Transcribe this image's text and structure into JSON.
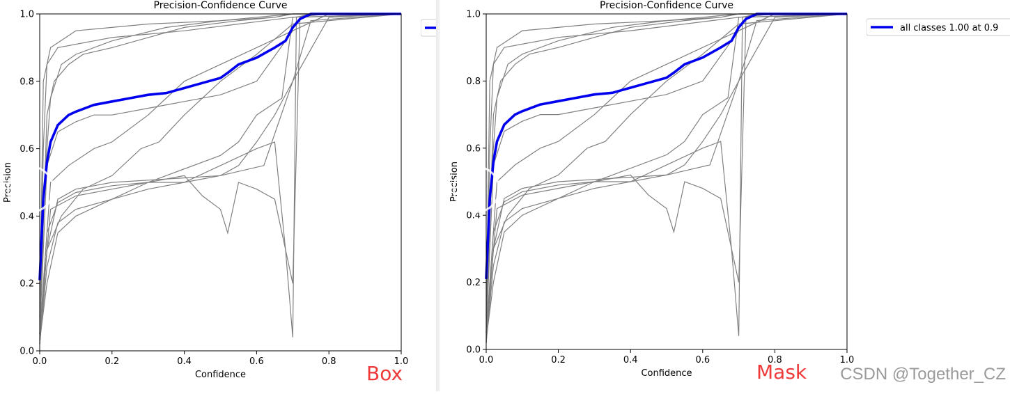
{
  "chart_data": [
    {
      "type": "line",
      "id": "box",
      "title": "Precision-Confidence Curve",
      "xlabel": "Confidence",
      "ylabel": "Precision",
      "xlim": [
        0,
        1.0
      ],
      "ylim": [
        0,
        1.0
      ],
      "xticks": [
        "0.0",
        "0.2",
        "0.4",
        "0.6",
        "0.8",
        "1.0"
      ],
      "yticks": [
        "0.0",
        "0.2",
        "0.4",
        "0.6",
        "0.8",
        "1.0"
      ],
      "grid": false,
      "legend_position": "outside-right",
      "series": [
        {
          "name": "all classes 1.00 at 0.9",
          "color": "#0000ee",
          "x": [
            0.0,
            0.005,
            0.01,
            0.02,
            0.03,
            0.05,
            0.08,
            0.1,
            0.15,
            0.2,
            0.25,
            0.3,
            0.35,
            0.4,
            0.45,
            0.5,
            0.52,
            0.55,
            0.6,
            0.65,
            0.68,
            0.7,
            0.72,
            0.75,
            0.78,
            0.8,
            0.85,
            0.9,
            1.0
          ],
          "y": [
            0.21,
            0.33,
            0.45,
            0.56,
            0.62,
            0.67,
            0.7,
            0.71,
            0.73,
            0.74,
            0.75,
            0.76,
            0.765,
            0.78,
            0.795,
            0.81,
            0.825,
            0.85,
            0.87,
            0.9,
            0.92,
            0.96,
            0.985,
            1.0,
            1.0,
            1.0,
            1.0,
            1.0,
            1.0
          ]
        }
      ],
      "caption": "Box"
    },
    {
      "type": "line",
      "id": "mask",
      "title": "Precision-Confidence Curve",
      "xlabel": "Confidence",
      "ylabel": "Precision",
      "xlim": [
        0,
        1.0
      ],
      "ylim": [
        0,
        1.0
      ],
      "xticks": [
        "0.0",
        "0.2",
        "0.4",
        "0.6",
        "0.8",
        "1.0"
      ],
      "yticks": [
        "0.0",
        "0.2",
        "0.4",
        "0.6",
        "0.8",
        "1.0"
      ],
      "grid": false,
      "legend_position": "outside-right",
      "series": [
        {
          "name": "all classes 1.00 at 0.9",
          "color": "#0000ee",
          "x": [
            0.0,
            0.005,
            0.01,
            0.02,
            0.03,
            0.05,
            0.08,
            0.1,
            0.15,
            0.2,
            0.25,
            0.3,
            0.35,
            0.4,
            0.45,
            0.5,
            0.52,
            0.55,
            0.6,
            0.65,
            0.68,
            0.7,
            0.72,
            0.75,
            0.78,
            0.8,
            0.85,
            0.9,
            1.0
          ],
          "y": [
            0.21,
            0.33,
            0.45,
            0.56,
            0.62,
            0.67,
            0.7,
            0.71,
            0.73,
            0.74,
            0.75,
            0.76,
            0.765,
            0.78,
            0.795,
            0.81,
            0.825,
            0.85,
            0.87,
            0.9,
            0.92,
            0.96,
            0.985,
            1.0,
            1.0,
            1.0,
            1.0,
            1.0,
            1.0
          ]
        }
      ],
      "caption": "Mask"
    }
  ],
  "per_class_curves": {
    "color": "#808080",
    "curves": [
      {
        "x": [
          0.0,
          0.01,
          0.03,
          0.1,
          0.3,
          0.5,
          0.65,
          0.7,
          0.75,
          1.0
        ],
        "y": [
          0.1,
          0.8,
          0.9,
          0.95,
          0.97,
          0.98,
          0.99,
          1.0,
          1.0,
          1.0
        ]
      },
      {
        "x": [
          0.0,
          0.01,
          0.02,
          0.05,
          0.2,
          0.4,
          0.55,
          0.7,
          0.8,
          1.0
        ],
        "y": [
          0.05,
          0.6,
          0.85,
          0.9,
          0.93,
          0.95,
          0.97,
          0.99,
          1.0,
          1.0
        ]
      },
      {
        "x": [
          0.0,
          0.02,
          0.05,
          0.1,
          0.2,
          0.35,
          0.5,
          0.62,
          0.7,
          0.8,
          1.0
        ],
        "y": [
          0.02,
          0.3,
          0.45,
          0.48,
          0.5,
          0.51,
          0.52,
          0.55,
          0.8,
          0.99,
          1.0
        ]
      },
      {
        "x": [
          0.0,
          0.02,
          0.05,
          0.1,
          0.2,
          0.3,
          0.4,
          0.5,
          0.55,
          0.6,
          0.65,
          0.7,
          0.75,
          1.0
        ],
        "y": [
          0.03,
          0.35,
          0.44,
          0.47,
          0.49,
          0.5,
          0.5,
          0.52,
          0.55,
          0.62,
          0.7,
          0.8,
          0.98,
          1.0
        ]
      },
      {
        "x": [
          0.0,
          0.03,
          0.1,
          0.2,
          0.3,
          0.4,
          0.45,
          0.5,
          0.52,
          0.55,
          0.6,
          0.65,
          0.7,
          0.72,
          1.0
        ],
        "y": [
          0.05,
          0.42,
          0.46,
          0.48,
          0.5,
          0.52,
          0.46,
          0.42,
          0.35,
          0.5,
          0.48,
          0.45,
          0.2,
          0.99,
          1.0
        ]
      },
      {
        "x": [
          0.0,
          0.02,
          0.05,
          0.1,
          0.2,
          0.3,
          0.4,
          0.5,
          0.6,
          0.65,
          0.68,
          0.7,
          0.71,
          0.75,
          1.0
        ],
        "y": [
          0.02,
          0.25,
          0.38,
          0.42,
          0.45,
          0.48,
          0.5,
          0.55,
          0.6,
          0.62,
          0.3,
          0.04,
          0.99,
          1.0,
          1.0
        ]
      },
      {
        "x": [
          0.0,
          0.02,
          0.05,
          0.1,
          0.15,
          0.2,
          0.3,
          0.4,
          0.5,
          0.6,
          0.7,
          0.8,
          1.0
        ],
        "y": [
          0.05,
          0.55,
          0.65,
          0.68,
          0.7,
          0.7,
          0.72,
          0.74,
          0.76,
          0.8,
          0.95,
          1.0,
          1.0
        ]
      },
      {
        "x": [
          0.0,
          0.03,
          0.08,
          0.15,
          0.2,
          0.3,
          0.35,
          0.4,
          0.5,
          0.6,
          0.7,
          0.8,
          1.0
        ],
        "y": [
          0.05,
          0.5,
          0.55,
          0.6,
          0.62,
          0.7,
          0.75,
          0.8,
          0.85,
          0.9,
          0.95,
          1.0,
          1.0
        ]
      },
      {
        "x": [
          0.0,
          0.02,
          0.06,
          0.12,
          0.2,
          0.28,
          0.33,
          0.4,
          0.5,
          0.6,
          0.7,
          1.0
        ],
        "y": [
          0.02,
          0.3,
          0.4,
          0.48,
          0.52,
          0.6,
          0.62,
          0.7,
          0.8,
          0.88,
          0.97,
          1.0
        ]
      },
      {
        "x": [
          0.0,
          0.02,
          0.05,
          0.1,
          0.2,
          0.3,
          0.35,
          0.5,
          0.55,
          0.6,
          0.67,
          0.7,
          1.0
        ],
        "y": [
          0.03,
          0.2,
          0.35,
          0.4,
          0.45,
          0.5,
          0.52,
          0.58,
          0.62,
          0.7,
          0.75,
          0.99,
          1.0
        ]
      },
      {
        "x": [
          0.0,
          0.02,
          0.04,
          0.08,
          0.12,
          0.2,
          0.3,
          0.4,
          0.55,
          0.65,
          0.7,
          1.0
        ],
        "y": [
          0.05,
          0.7,
          0.8,
          0.85,
          0.88,
          0.9,
          0.93,
          0.96,
          0.98,
          0.99,
          1.0,
          1.0
        ]
      },
      {
        "x": [
          0.0,
          0.01,
          0.03,
          0.06,
          0.1,
          0.2,
          0.35,
          0.5,
          0.6,
          0.7,
          1.0
        ],
        "y": [
          0.02,
          0.45,
          0.75,
          0.85,
          0.88,
          0.92,
          0.96,
          0.98,
          0.99,
          1.0,
          1.0
        ]
      }
    ]
  },
  "legend_label": "all classes 1.00 at 0.9",
  "watermark": "CSDN @Together_CZ"
}
